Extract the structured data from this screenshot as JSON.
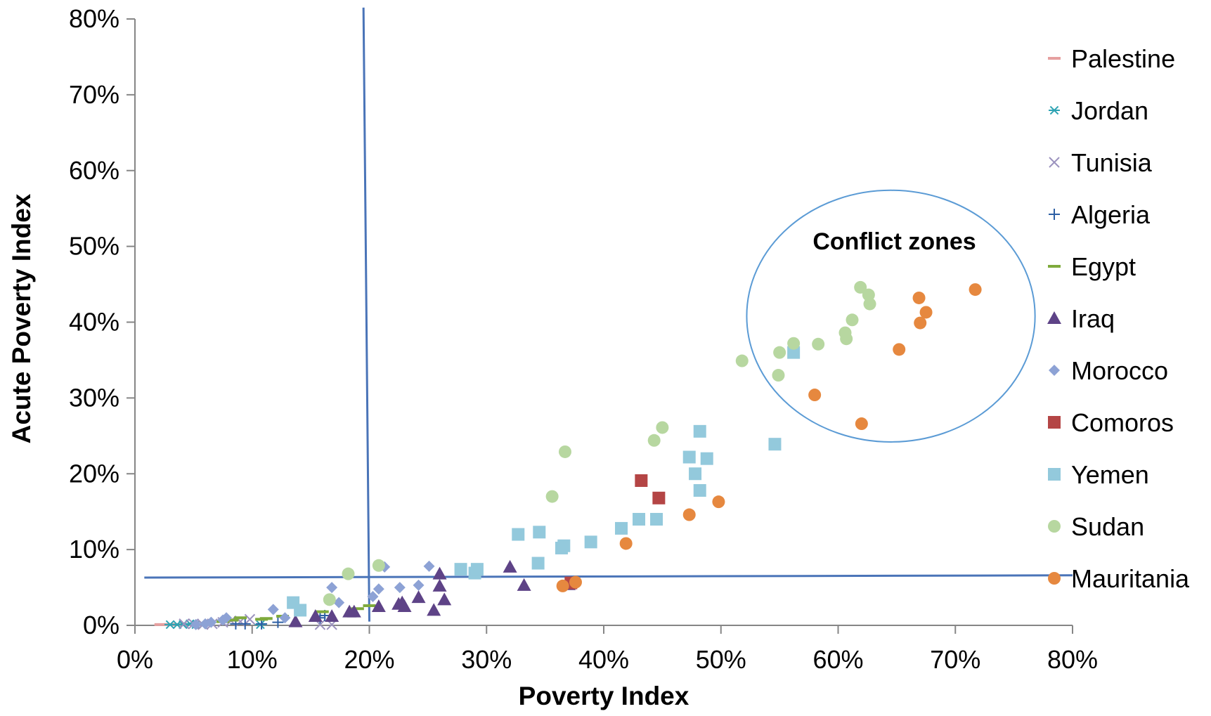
{
  "chart_data": {
    "type": "scatter",
    "xlabel": "Poverty Index",
    "ylabel": "Acute Poverty Index",
    "xlim": [
      0,
      0.8
    ],
    "ylim": [
      0,
      0.8
    ],
    "x_ticks": [
      "0%",
      "10%",
      "20%",
      "30%",
      "40%",
      "50%",
      "60%",
      "70%",
      "80%"
    ],
    "y_ticks": [
      "0%",
      "10%",
      "20%",
      "30%",
      "40%",
      "50%",
      "60%",
      "70%",
      "80%"
    ],
    "grid": false,
    "legend_position": "right",
    "threshold_lines": [
      {
        "orientation": "vertical",
        "from": [
          0.195,
          0.815
        ],
        "to": [
          0.2,
          0.005
        ]
      },
      {
        "orientation": "horizontal",
        "from": [
          0.008,
          0.063
        ],
        "to": [
          0.8,
          0.066
        ]
      }
    ],
    "annotation": {
      "label": "Conflict zones",
      "center": [
        0.645,
        0.408
      ],
      "rx": 0.123,
      "ry": 0.166
    },
    "series": [
      {
        "name": "Palestine",
        "marker": "dash",
        "color": "#e6a0a0",
        "points": [
          [
            0.022,
            0.001
          ],
          [
            0.03,
            0.001
          ],
          [
            0.038,
            0.001
          ],
          [
            0.048,
            0.001
          ],
          [
            0.057,
            0.001
          ],
          [
            0.062,
            0.001
          ]
        ]
      },
      {
        "name": "Jordan",
        "marker": "asterisk",
        "color": "#2ea3b3",
        "points": [
          [
            0.03,
            0.001
          ],
          [
            0.036,
            0.001
          ],
          [
            0.041,
            0.001
          ],
          [
            0.047,
            0.002
          ],
          [
            0.052,
            0.001
          ],
          [
            0.058,
            0.001
          ],
          [
            0.107,
            0.001
          ]
        ]
      },
      {
        "name": "Tunisia",
        "marker": "x",
        "color": "#9c93bf",
        "points": [
          [
            0.042,
            0.002
          ],
          [
            0.05,
            0.002
          ],
          [
            0.058,
            0.001
          ],
          [
            0.066,
            0.002
          ],
          [
            0.075,
            0.004
          ],
          [
            0.082,
            0.006
          ],
          [
            0.09,
            0.005
          ],
          [
            0.098,
            0.008
          ],
          [
            0.158,
            0.001
          ],
          [
            0.168,
            0.001
          ]
        ]
      },
      {
        "name": "Algeria",
        "marker": "plus",
        "color": "#2d5fa4",
        "points": [
          [
            0.086,
            0.002
          ],
          [
            0.094,
            0.002
          ],
          [
            0.108,
            0.002
          ],
          [
            0.122,
            0.004
          ],
          [
            0.158,
            0.01
          ],
          [
            0.162,
            0.013
          ]
        ]
      },
      {
        "name": "Egypt",
        "marker": "dash",
        "color": "#7faa3c",
        "points": [
          [
            0.075,
            0.005
          ],
          [
            0.083,
            0.007
          ],
          [
            0.09,
            0.01
          ],
          [
            0.108,
            0.008
          ],
          [
            0.112,
            0.009
          ],
          [
            0.126,
            0.012
          ],
          [
            0.16,
            0.018
          ],
          [
            0.19,
            0.022
          ],
          [
            0.2,
            0.026
          ]
        ]
      },
      {
        "name": "Iraq",
        "marker": "triangle",
        "color": "#5e4387",
        "points": [
          [
            0.137,
            0.005
          ],
          [
            0.154,
            0.012
          ],
          [
            0.168,
            0.012
          ],
          [
            0.183,
            0.018
          ],
          [
            0.187,
            0.018
          ],
          [
            0.208,
            0.025
          ],
          [
            0.225,
            0.028
          ],
          [
            0.228,
            0.03
          ],
          [
            0.23,
            0.025
          ],
          [
            0.242,
            0.037
          ],
          [
            0.255,
            0.02
          ],
          [
            0.26,
            0.052
          ],
          [
            0.26,
            0.068
          ],
          [
            0.264,
            0.034
          ],
          [
            0.32,
            0.077
          ],
          [
            0.332,
            0.053
          ],
          [
            0.37,
            0.054
          ]
        ]
      },
      {
        "name": "Morocco",
        "marker": "diamond",
        "color": "#8da2d5",
        "points": [
          [
            0.052,
            0.001
          ],
          [
            0.06,
            0.002
          ],
          [
            0.065,
            0.004
          ],
          [
            0.075,
            0.007
          ],
          [
            0.078,
            0.01
          ],
          [
            0.118,
            0.021
          ],
          [
            0.128,
            0.01
          ],
          [
            0.168,
            0.05
          ],
          [
            0.174,
            0.03
          ],
          [
            0.203,
            0.038
          ],
          [
            0.208,
            0.048
          ],
          [
            0.213,
            0.077
          ],
          [
            0.226,
            0.05
          ],
          [
            0.242,
            0.053
          ],
          [
            0.251,
            0.078
          ]
        ]
      },
      {
        "name": "Comoros",
        "marker": "square",
        "color": "#b44545",
        "points": [
          [
            0.372,
            0.056
          ],
          [
            0.432,
            0.191
          ],
          [
            0.447,
            0.168
          ]
        ]
      },
      {
        "name": "Yemen",
        "marker": "square",
        "color": "#93c9dc",
        "points": [
          [
            0.135,
            0.03
          ],
          [
            0.141,
            0.02
          ],
          [
            0.278,
            0.074
          ],
          [
            0.29,
            0.069
          ],
          [
            0.292,
            0.074
          ],
          [
            0.327,
            0.12
          ],
          [
            0.345,
            0.123
          ],
          [
            0.344,
            0.082
          ],
          [
            0.364,
            0.102
          ],
          [
            0.366,
            0.105
          ],
          [
            0.389,
            0.11
          ],
          [
            0.415,
            0.128
          ],
          [
            0.43,
            0.14
          ],
          [
            0.445,
            0.14
          ],
          [
            0.473,
            0.222
          ],
          [
            0.478,
            0.2
          ],
          [
            0.482,
            0.256
          ],
          [
            0.482,
            0.178
          ],
          [
            0.488,
            0.22
          ],
          [
            0.546,
            0.239
          ],
          [
            0.562,
            0.36
          ]
        ]
      },
      {
        "name": "Sudan",
        "marker": "circle",
        "color": "#b7d7a0",
        "points": [
          [
            0.166,
            0.034
          ],
          [
            0.182,
            0.068
          ],
          [
            0.208,
            0.079
          ],
          [
            0.356,
            0.17
          ],
          [
            0.367,
            0.229
          ],
          [
            0.443,
            0.244
          ],
          [
            0.45,
            0.261
          ],
          [
            0.518,
            0.349
          ],
          [
            0.549,
            0.33
          ],
          [
            0.55,
            0.36
          ],
          [
            0.562,
            0.372
          ],
          [
            0.583,
            0.371
          ],
          [
            0.606,
            0.386
          ],
          [
            0.607,
            0.378
          ],
          [
            0.612,
            0.403
          ],
          [
            0.619,
            0.446
          ],
          [
            0.626,
            0.436
          ],
          [
            0.627,
            0.424
          ]
        ]
      },
      {
        "name": "Mauritania",
        "marker": "circle",
        "color": "#e6883f",
        "points": [
          [
            0.365,
            0.052
          ],
          [
            0.376,
            0.057
          ],
          [
            0.419,
            0.108
          ],
          [
            0.473,
            0.146
          ],
          [
            0.498,
            0.163
          ],
          [
            0.58,
            0.304
          ],
          [
            0.62,
            0.266
          ],
          [
            0.652,
            0.364
          ],
          [
            0.669,
            0.432
          ],
          [
            0.67,
            0.399
          ],
          [
            0.675,
            0.413
          ],
          [
            0.717,
            0.443
          ]
        ]
      }
    ]
  }
}
